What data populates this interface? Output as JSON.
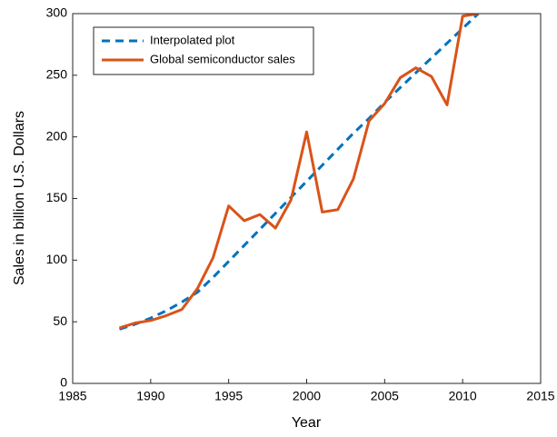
{
  "chart_data": {
    "type": "line",
    "x": [
      1988,
      1989,
      1990,
      1991,
      1992,
      1993,
      1994,
      1995,
      1996,
      1997,
      1998,
      1999,
      2000,
      2001,
      2002,
      2003,
      2004,
      2005,
      2006,
      2007,
      2008,
      2009,
      2010,
      2011
    ],
    "series": [
      {
        "name": "Interpolated plot",
        "color": "#0072bd",
        "dashed": true,
        "values": [
          44,
          48,
          53,
          59,
          66,
          74,
          86,
          99,
          112,
          125,
          138,
          151,
          164,
          177,
          190,
          203,
          215,
          228,
          240,
          252,
          264,
          276,
          288,
          300
        ]
      },
      {
        "name": "Global semiconductor sales",
        "color": "#d95319",
        "dashed": false,
        "values": [
          45,
          49,
          51,
          55,
          60,
          77,
          102,
          144,
          132,
          137,
          126,
          149,
          204,
          139,
          141,
          166,
          213,
          227,
          248,
          256,
          249,
          226,
          298,
          300
        ]
      }
    ],
    "x_label": "Year",
    "y_label": "Sales in billion U.S. Dollars",
    "xlim": [
      1985,
      2015
    ],
    "xticks": [
      1985,
      1990,
      1995,
      2000,
      2005,
      2010,
      2015
    ],
    "ylim": [
      0,
      300
    ],
    "yticks": [
      0,
      50,
      100,
      150,
      200,
      250,
      300
    ],
    "legend": "northwest"
  }
}
